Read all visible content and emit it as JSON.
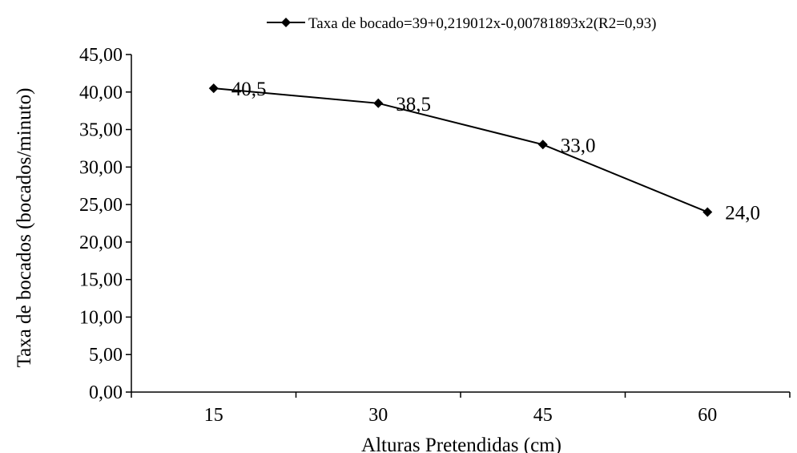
{
  "chart_data": {
    "type": "line",
    "title": "",
    "xlabel": "Alturas Pretendidas (cm)",
    "ylabel": "Taxa de bocados (bocados/minuto)",
    "categories": [
      "15",
      "30",
      "45",
      "60"
    ],
    "series": [
      {
        "name": "Taxa de bocado=39+0,219012x-0,00781893x2(R2=0,93)",
        "values": [
          40.5,
          38.5,
          33.0,
          24.0
        ],
        "data_labels": [
          "40,5",
          "38,5",
          "33,0",
          "24,0"
        ],
        "color": "#000000",
        "marker": "diamond"
      }
    ],
    "ylim": [
      0,
      45
    ],
    "y_ticks": [
      "0,00",
      "5,00",
      "10,00",
      "15,00",
      "20,00",
      "25,00",
      "30,00",
      "35,00",
      "40,00",
      "45,00"
    ],
    "grid": false,
    "legend_position": "top-right"
  }
}
